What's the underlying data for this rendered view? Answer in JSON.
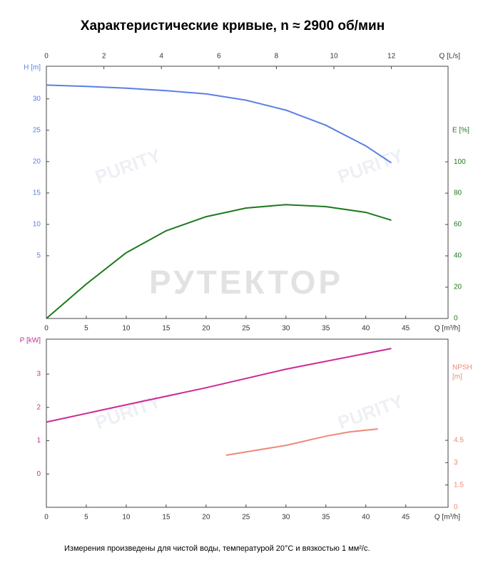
{
  "title": "Характеристические кривые, n ≈ 2900 об/мин",
  "footnote": "Измерения произведены для чистой воды, температурой 20°C и вязкостью 1 мм²/с.",
  "watermark": "РУТЕКТОР",
  "watermark_logo": "PURITY",
  "chart_data": [
    {
      "type": "line",
      "xlabel": "Q [m³/h]",
      "x2label": "Q [L/s]",
      "ylabel": "H [m]",
      "y2label": [
        "E [%]"
      ],
      "xlim": [
        0,
        50.3
      ],
      "xticks": [
        0,
        5,
        10,
        15,
        20,
        25,
        30,
        35,
        40,
        45
      ],
      "x2lim": [
        0,
        13.97
      ],
      "x2ticks": [
        0,
        2,
        4,
        6,
        8,
        10,
        12
      ],
      "ylim": [
        -5,
        35.2
      ],
      "yticks": [
        5,
        10,
        15,
        20,
        25,
        30
      ],
      "y2lim": [
        0,
        161
      ],
      "y2ticks": [
        0,
        20,
        40,
        60,
        80,
        100
      ],
      "series": [
        {
          "name": "H",
          "color": "#5a7fe6",
          "x": [
            0,
            5,
            10,
            15,
            20,
            25,
            30,
            35,
            40,
            43.2
          ],
          "values": [
            32.2,
            32.0,
            31.7,
            31.3,
            30.8,
            29.8,
            28.2,
            25.8,
            22.5,
            19.8
          ]
        },
        {
          "name": "E",
          "color": "#1d7a1d",
          "axis": "y2",
          "x": [
            0,
            5,
            10,
            15,
            20,
            25,
            30,
            35,
            40,
            43.2
          ],
          "values": [
            0,
            22,
            42,
            56,
            65,
            70.5,
            72.7,
            71.4,
            67.7,
            62.7
          ]
        }
      ]
    },
    {
      "type": "line",
      "xlabel": "Q [m³/h]",
      "ylabel": "P [kW]",
      "y2label": [
        "NPSH",
        "[m]"
      ],
      "xlim": [
        0,
        50.3
      ],
      "xticks": [
        0,
        5,
        10,
        15,
        20,
        25,
        30,
        35,
        40,
        45
      ],
      "ylim": [
        -1,
        4.05
      ],
      "yticks": [
        0,
        1,
        2,
        3
      ],
      "y2lim": [
        0,
        11.3
      ],
      "y2ticks": [
        0,
        1.5,
        3,
        4.5
      ],
      "series": [
        {
          "name": "P",
          "color": "#cc2a96",
          "x": [
            0,
            10,
            20,
            30,
            43.2
          ],
          "values": [
            1.56,
            2.08,
            2.59,
            3.15,
            3.77
          ]
        },
        {
          "name": "NPSH",
          "color": "#f08878",
          "axis": "y2",
          "x": [
            22.5,
            30,
            35,
            38,
            41.5
          ],
          "values": [
            3.5,
            4.16,
            4.78,
            5.07,
            5.26
          ]
        }
      ]
    }
  ]
}
